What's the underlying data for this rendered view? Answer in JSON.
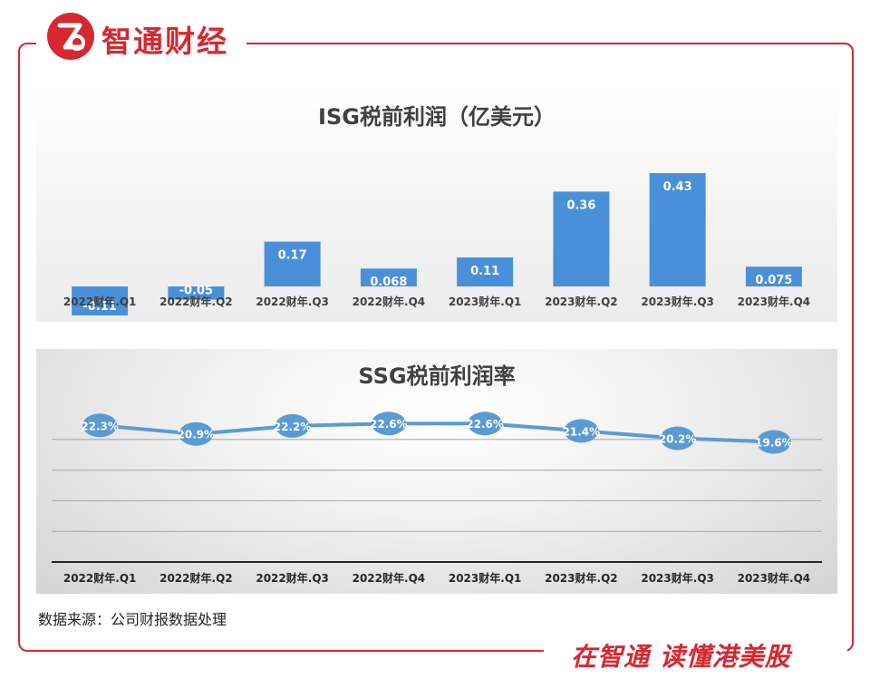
{
  "brand": {
    "name": "智通财经",
    "logo_letter": "Z"
  },
  "slogan": "在智通  读懂港美股",
  "source": "数据来源：公司财报数据处理",
  "colors": {
    "brand_red": "#d6282f",
    "bar_blue": "#4a90d9",
    "line_blue": "#5b9bd5"
  },
  "chart_data": [
    {
      "type": "bar",
      "title": "ISG税前利润（亿美元）",
      "categories": [
        "2022财年.Q1",
        "2022财年.Q2",
        "2022财年.Q3",
        "2022财年.Q4",
        "2023财年.Q1",
        "2023财年.Q2",
        "2023财年.Q3",
        "2023财年.Q4"
      ],
      "values": [
        -0.11,
        -0.05,
        0.17,
        0.068,
        0.11,
        0.36,
        0.43,
        0.075
      ],
      "labels": [
        "-0.11",
        "-0.05",
        "0.17",
        "0.068",
        "0.11",
        "0.36",
        "0.43",
        "0.075"
      ],
      "ylim": [
        -0.12,
        0.5
      ],
      "grid": false,
      "legend": "none"
    },
    {
      "type": "line",
      "title": "SSG税前利润率",
      "categories": [
        "2022财年.Q1",
        "2022财年.Q2",
        "2022财年.Q3",
        "2022财年.Q4",
        "2023财年.Q1",
        "2023财年.Q2",
        "2023财年.Q3",
        "2023财年.Q4"
      ],
      "values": [
        22.3,
        20.9,
        22.2,
        22.6,
        22.6,
        21.4,
        20.2,
        19.6
      ],
      "labels": [
        "22.3%",
        "20.9%",
        "22.2%",
        "22.6%",
        "22.6%",
        "21.4%",
        "20.2%",
        "19.6%"
      ],
      "unit": "%",
      "ylim": [
        0,
        25
      ],
      "grid": true,
      "legend": "none"
    }
  ]
}
